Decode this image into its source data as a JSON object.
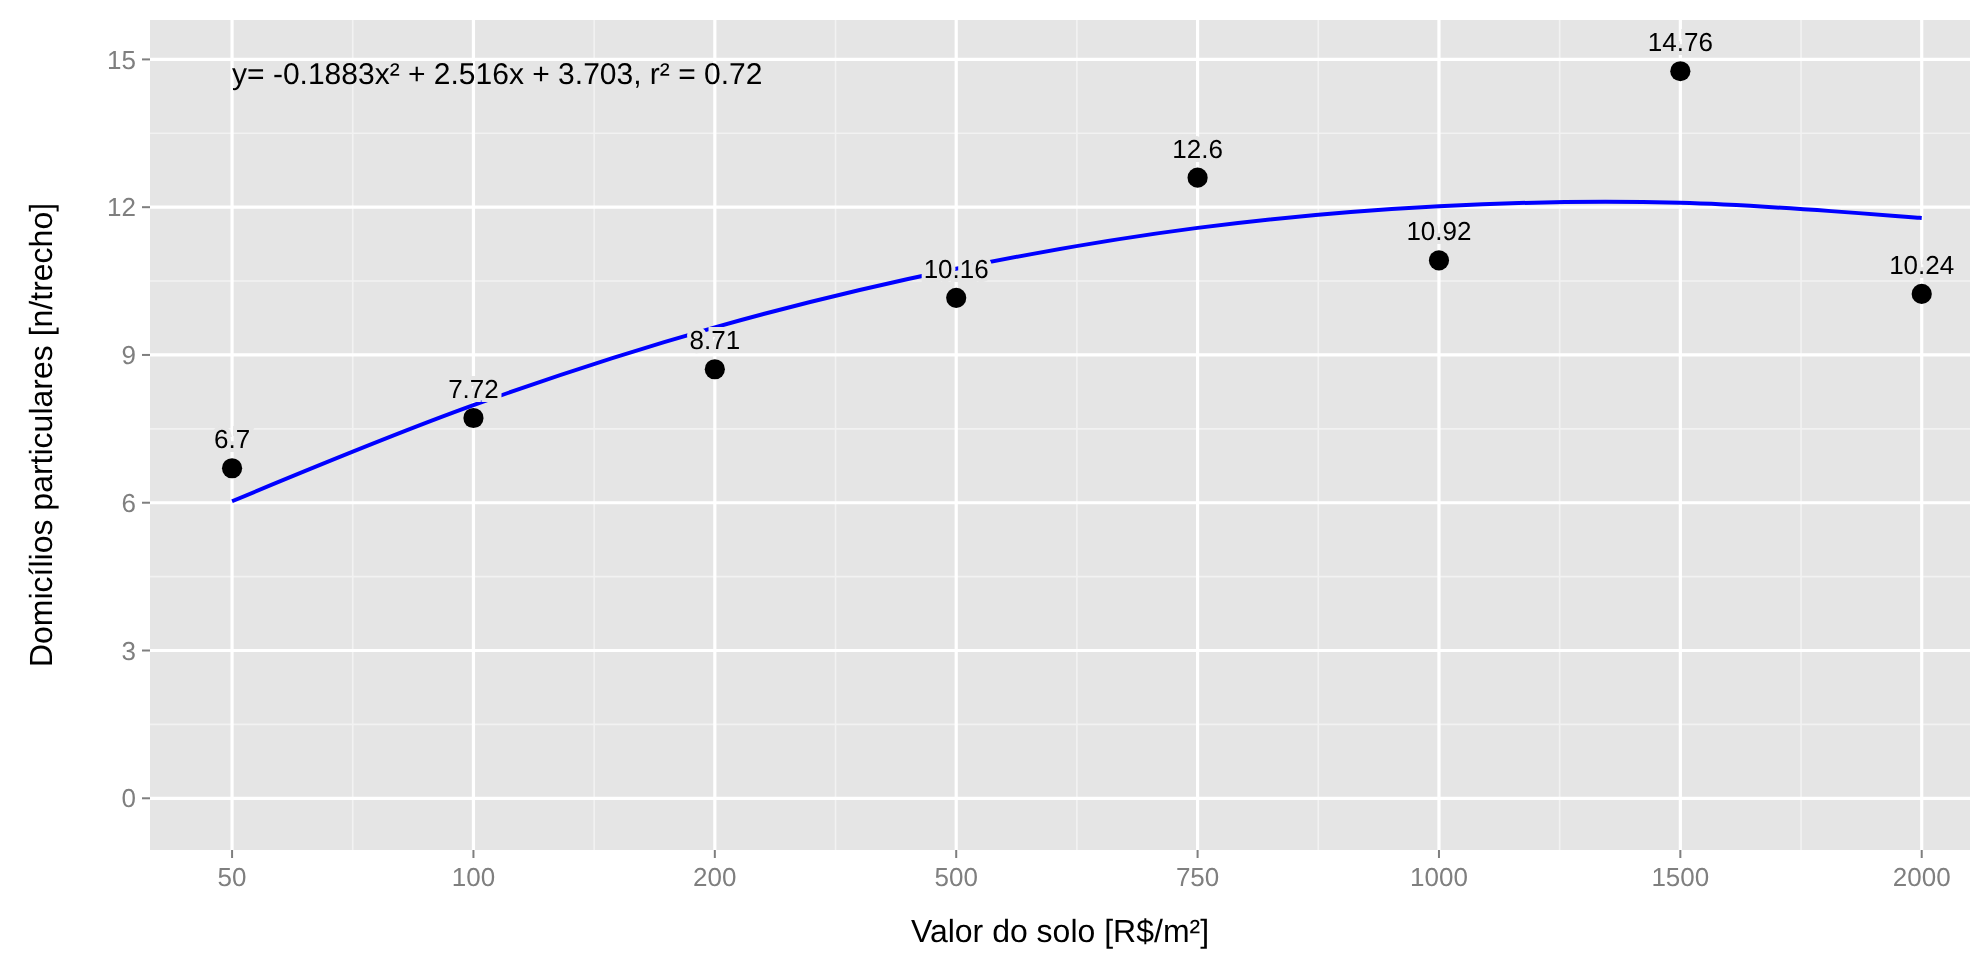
{
  "chart_data": {
    "type": "scatter",
    "xlabel": "Valor do solo [R$/m²]",
    "ylabel": "Domicílios particulares [n/trecho]",
    "categories": [
      "50",
      "100",
      "200",
      "500",
      "750",
      "1000",
      "1500",
      "2000"
    ],
    "ylim": [
      -1.05,
      15.8
    ],
    "yticks": [
      0,
      3,
      6,
      9,
      12,
      15
    ],
    "grid": true,
    "annotations": [
      "y= -0.1883x² + 2.516x + 3.703, r² = 0.72"
    ],
    "series": [
      {
        "color": "#000000",
        "values": [
          6.7,
          7.72,
          8.71,
          10.16,
          12.6,
          10.92,
          14.76,
          10.24
        ],
        "data_labels": true,
        "marker": "circle"
      },
      {
        "type": "line",
        "color": "#0000ff",
        "values": [
          6.03,
          7.98,
          9.56,
          10.75,
          11.58,
          12.02,
          12.09,
          11.78
        ],
        "line_style": "solid"
      }
    ]
  }
}
